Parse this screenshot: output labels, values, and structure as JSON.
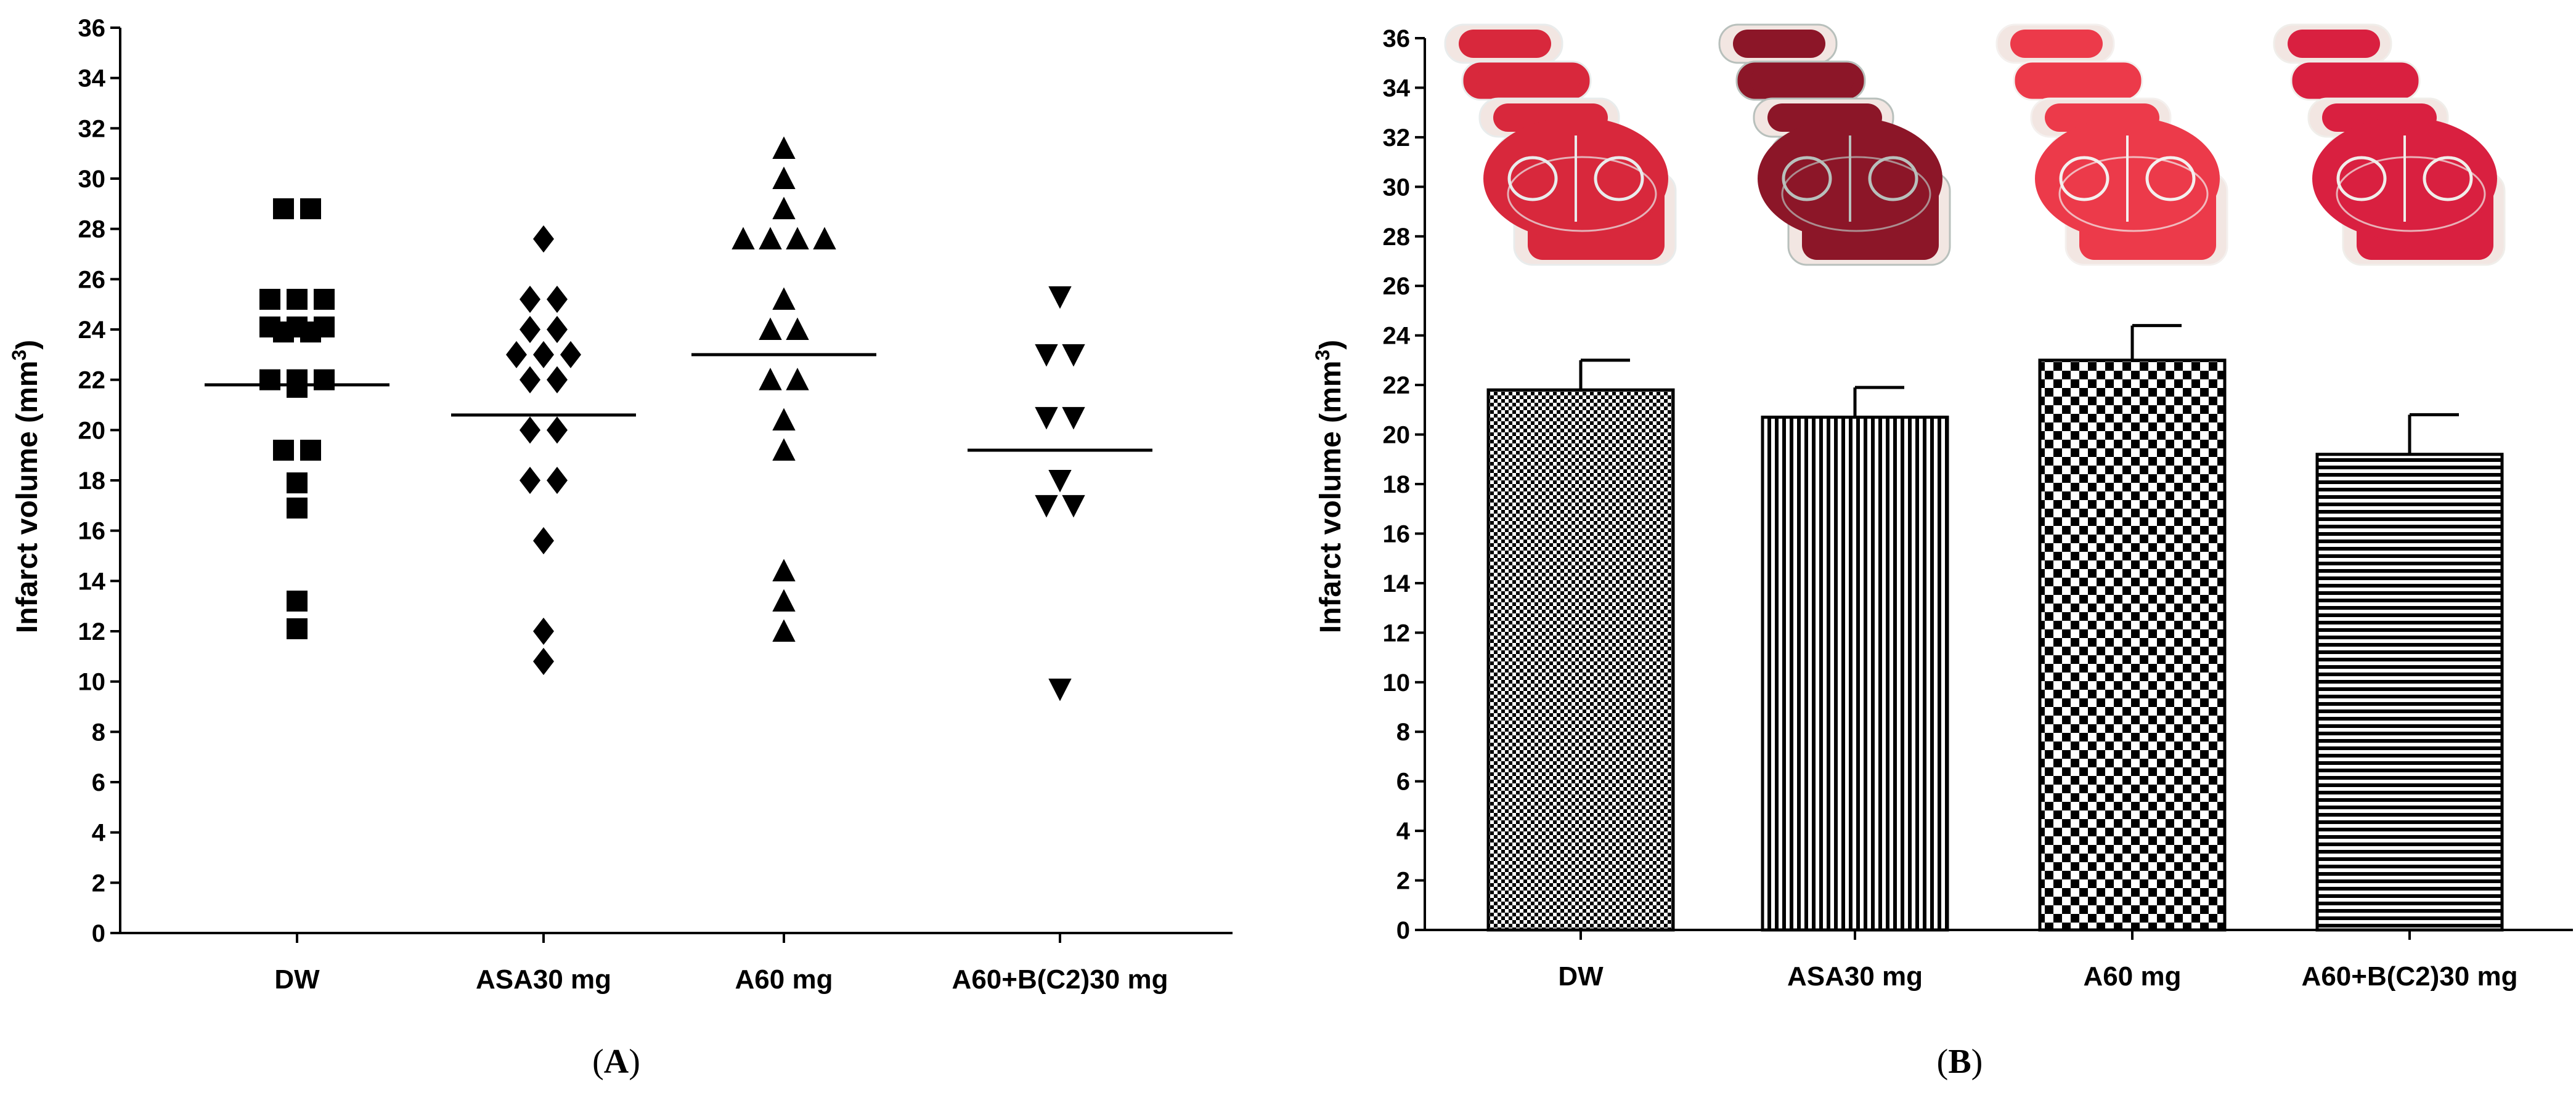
{
  "chart_data": [
    {
      "panel": "A",
      "type": "scatter",
      "ylabel": "Infarct volume (mm",
      "ylabel_sup": "3",
      "ylabel_close": ")",
      "ylim": [
        0,
        36
      ],
      "ytick_step": 2,
      "categories": [
        "DW",
        "ASA30 mg",
        "A60 mg",
        "A60+B(C2)30 mg"
      ],
      "series": [
        {
          "name": "DW",
          "marker": "square",
          "values": [
            28.8,
            28.8,
            24.1,
            24.1,
            24.1,
            25.2,
            25.2,
            25.2,
            23.9,
            23.9,
            22.0,
            22.0,
            22.0,
            21.7,
            19.2,
            19.2,
            17.9,
            16.9,
            13.2,
            12.1
          ],
          "mean": 21.8
        },
        {
          "name": "ASA30 mg",
          "marker": "diamond",
          "values": [
            27.6,
            25.2,
            25.2,
            24.0,
            24.0,
            23.0,
            23.0,
            23.0,
            22.0,
            22.0,
            20.0,
            20.0,
            18.0,
            18.0,
            15.6,
            12.0,
            10.8
          ],
          "mean": 20.6
        },
        {
          "name": "A60 mg",
          "marker": "triangle-up",
          "values": [
            31.2,
            30.0,
            28.8,
            27.6,
            27.6,
            27.6,
            27.6,
            25.2,
            24.0,
            24.0,
            22.0,
            22.0,
            20.4,
            19.2,
            14.4,
            13.2,
            12.0
          ],
          "mean": 23.0
        },
        {
          "name": "A60+B(C2)30 mg",
          "marker": "triangle-down",
          "values": [
            25.3,
            23.0,
            23.0,
            20.5,
            20.5,
            18.0,
            17.0,
            17.0,
            9.7
          ],
          "mean": 19.2
        }
      ],
      "panel_label": "A"
    },
    {
      "panel": "B",
      "type": "bar",
      "ylabel": "Infarct volume (mm",
      "ylabel_sup": "3",
      "ylabel_close": ")",
      "ylim": [
        0,
        36
      ],
      "ytick_step": 2,
      "categories": [
        "DW",
        "ASA30 mg",
        "A60 mg",
        "A60+B(C2)30 mg"
      ],
      "values": [
        21.8,
        20.7,
        23.0,
        19.2
      ],
      "errors": [
        1.2,
        1.2,
        1.4,
        1.6
      ],
      "bar_patterns": [
        "fine-check",
        "vertical-stripes",
        "checkerboard",
        "horizontal-stripes"
      ],
      "inset_images": [
        "brain-slices-dw",
        "brain-slices-asa30",
        "brain-slices-a60",
        "brain-slices-a60-b-c2"
      ],
      "panel_label": "B"
    }
  ],
  "colors": {
    "ink": "#000000",
    "background": "#ffffff",
    "tissue_red": "#d8283c",
    "tissue_dark": "#8c1628",
    "tissue_pale": "#f2e6e2"
  }
}
